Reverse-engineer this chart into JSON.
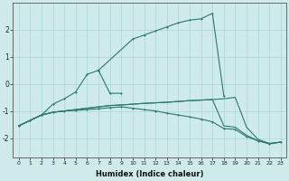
{
  "xlabel": "Humidex (Indice chaleur)",
  "xlim": [
    -0.5,
    23.5
  ],
  "ylim": [
    -2.7,
    3.0
  ],
  "bg_color": "#ceeaea",
  "line_color": "#2a7a6a",
  "grid_color": "#aed4d4",
  "curve_upper": {
    "x": [
      0,
      1,
      2,
      3,
      4,
      5,
      6,
      7,
      10,
      11,
      12,
      13,
      14,
      15,
      16,
      17,
      18
    ],
    "y": [
      -1.55,
      -1.35,
      -1.15,
      -0.75,
      -0.55,
      -0.3,
      0.35,
      0.5,
      1.65,
      1.8,
      1.95,
      2.1,
      2.25,
      2.35,
      2.4,
      2.6,
      -0.45
    ]
  },
  "curve_dip": {
    "x": [
      7,
      8,
      9
    ],
    "y": [
      0.5,
      -0.35,
      -0.35
    ]
  },
  "curve_mid1": {
    "x": [
      0,
      1,
      2,
      3,
      4,
      5,
      6,
      7,
      8,
      9,
      10,
      11,
      12,
      13,
      14,
      15,
      16,
      17,
      18,
      19,
      20,
      21,
      22,
      23
    ],
    "y": [
      -1.55,
      -1.35,
      -1.15,
      -1.05,
      -1.0,
      -0.95,
      -0.9,
      -0.85,
      -0.8,
      -0.78,
      -0.75,
      -0.72,
      -0.7,
      -0.68,
      -0.65,
      -0.62,
      -0.6,
      -0.58,
      -0.55,
      -0.5,
      -1.6,
      -2.05,
      -2.2,
      -2.15
    ]
  },
  "curve_mid2": {
    "x": [
      0,
      1,
      2,
      3,
      4,
      5,
      6,
      7,
      8,
      9,
      10,
      11,
      12,
      13,
      14,
      15,
      16,
      17,
      18,
      19,
      20,
      21,
      22,
      23
    ],
    "y": [
      -1.55,
      -1.35,
      -1.15,
      -1.05,
      -1.0,
      -0.95,
      -0.9,
      -0.85,
      -0.8,
      -0.78,
      -0.75,
      -0.72,
      -0.7,
      -0.68,
      -0.65,
      -0.62,
      -0.6,
      -0.58,
      -1.55,
      -1.6,
      -1.9,
      -2.1,
      -2.2,
      -2.15
    ]
  },
  "curve_bottom": {
    "x": [
      0,
      1,
      2,
      3,
      4,
      5,
      6,
      7,
      8,
      9,
      10,
      11,
      12,
      13,
      14,
      15,
      16,
      17,
      18,
      19,
      20,
      21,
      22,
      23
    ],
    "y": [
      -1.55,
      -1.35,
      -1.15,
      -1.05,
      -1.0,
      -0.98,
      -0.95,
      -0.92,
      -0.88,
      -0.85,
      -0.9,
      -0.95,
      -1.0,
      -1.08,
      -1.15,
      -1.22,
      -1.3,
      -1.4,
      -1.65,
      -1.68,
      -1.95,
      -2.1,
      -2.22,
      -2.15
    ]
  }
}
